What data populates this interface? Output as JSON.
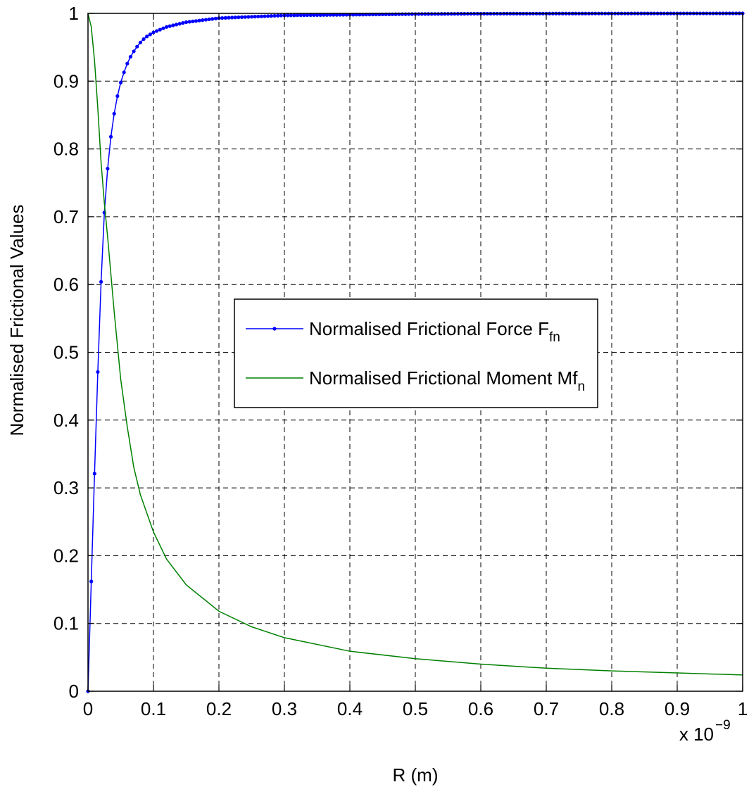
{
  "chart_data": {
    "type": "line",
    "xlabel": "R (m)",
    "ylabel": "Normalised Frictional Values",
    "x_multiplier": {
      "base": "x 10",
      "exponent": "−9"
    },
    "xlim": [
      0,
      1
    ],
    "ylim": [
      0,
      1
    ],
    "x_ticks": [
      "0",
      "0.1",
      "0.2",
      "0.3",
      "0.4",
      "0.5",
      "0.6",
      "0.7",
      "0.8",
      "0.9",
      "1"
    ],
    "y_ticks": [
      "0",
      "0.1",
      "0.2",
      "0.3",
      "0.4",
      "0.5",
      "0.6",
      "0.7",
      "0.8",
      "0.9",
      "1"
    ],
    "grid": true,
    "legend_placement": "center",
    "series": [
      {
        "name": "Normalised Frictional Force F",
        "name_subscript": "fn",
        "color": "#0000ff",
        "marker": "dot",
        "x": [
          0,
          0.005,
          0.01,
          0.015,
          0.02,
          0.025,
          0.03,
          0.035,
          0.04,
          0.045,
          0.05,
          0.055,
          0.06,
          0.065,
          0.07,
          0.075,
          0.08,
          0.085,
          0.09,
          0.095,
          0.1,
          0.12,
          0.15,
          0.2,
          0.3,
          0.4,
          0.5,
          0.6,
          0.7,
          0.8,
          0.9,
          1.0
        ],
        "y": [
          0,
          0.162,
          0.321,
          0.471,
          0.604,
          0.706,
          0.771,
          0.818,
          0.852,
          0.878,
          0.898,
          0.913,
          0.926,
          0.936,
          0.944,
          0.951,
          0.957,
          0.962,
          0.966,
          0.969,
          0.972,
          0.98,
          0.987,
          0.993,
          0.997,
          0.998,
          0.999,
          0.9995,
          0.9997,
          0.9998,
          0.9999,
          1.0
        ]
      },
      {
        "name": "Normalised Frictional Moment Mf",
        "name_subscript": "n",
        "color": "#008000",
        "marker": "none",
        "x": [
          0,
          0.005,
          0.01,
          0.015,
          0.02,
          0.025,
          0.03,
          0.04,
          0.05,
          0.06,
          0.07,
          0.08,
          0.1,
          0.12,
          0.15,
          0.2,
          0.25,
          0.3,
          0.4,
          0.5,
          0.6,
          0.7,
          0.8,
          0.9,
          1.0
        ],
        "y": [
          1.0,
          0.98,
          0.93,
          0.86,
          0.78,
          0.72,
          0.67,
          0.56,
          0.46,
          0.39,
          0.33,
          0.29,
          0.235,
          0.195,
          0.157,
          0.118,
          0.095,
          0.079,
          0.059,
          0.048,
          0.04,
          0.034,
          0.03,
          0.027,
          0.024
        ]
      }
    ]
  }
}
